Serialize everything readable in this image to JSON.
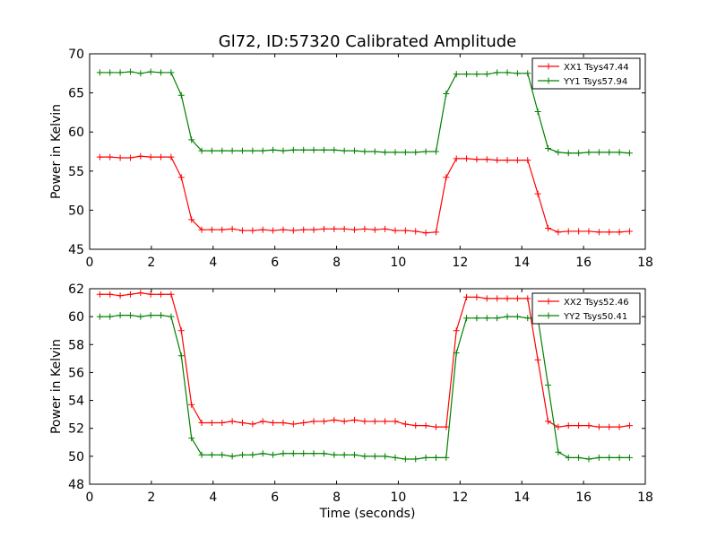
{
  "figure": {
    "title": "Gl72, ID:57320 Calibrated Amplitude"
  },
  "chart_data": [
    {
      "type": "line",
      "title": "Gl72, ID:57320 Calibrated Amplitude",
      "xlabel": "",
      "ylabel": "Power in Kelvin",
      "xlim": [
        0,
        18
      ],
      "ylim": [
        45,
        70
      ],
      "xticks": [
        0,
        2,
        4,
        6,
        8,
        10,
        12,
        14,
        16,
        18
      ],
      "yticks": [
        45,
        50,
        55,
        60,
        65,
        70
      ],
      "grid": false,
      "legend": "top-right",
      "x": [
        0.33,
        0.66,
        0.99,
        1.32,
        1.65,
        1.98,
        2.31,
        2.64,
        2.97,
        3.3,
        3.63,
        3.96,
        4.29,
        4.62,
        4.95,
        5.28,
        5.61,
        5.94,
        6.27,
        6.6,
        6.93,
        7.26,
        7.59,
        7.92,
        8.25,
        8.58,
        8.91,
        9.24,
        9.57,
        9.9,
        10.23,
        10.56,
        10.89,
        11.22,
        11.55,
        11.88,
        12.21,
        12.54,
        12.87,
        13.2,
        13.53,
        13.86,
        14.19,
        14.52,
        14.85,
        15.18,
        15.51,
        15.84,
        16.17,
        16.5,
        16.83,
        17.16,
        17.49
      ],
      "series": [
        {
          "name": "XX1 Tsys47.44",
          "color": "#ff0000",
          "values": [
            56.8,
            56.8,
            56.7,
            56.7,
            56.9,
            56.8,
            56.8,
            56.8,
            54.2,
            48.8,
            47.5,
            47.5,
            47.5,
            47.6,
            47.4,
            47.4,
            47.5,
            47.4,
            47.5,
            47.4,
            47.5,
            47.5,
            47.6,
            47.6,
            47.6,
            47.5,
            47.6,
            47.5,
            47.6,
            47.4,
            47.4,
            47.3,
            47.1,
            47.2,
            54.2,
            56.6,
            56.6,
            56.5,
            56.5,
            56.4,
            56.4,
            56.4,
            56.4,
            52.1,
            47.7,
            47.2,
            47.3,
            47.3,
            47.3,
            47.2,
            47.2,
            47.2,
            47.3
          ]
        },
        {
          "name": "YY1 Tsys57.94",
          "color": "#008000",
          "values": [
            67.6,
            67.6,
            67.6,
            67.7,
            67.5,
            67.7,
            67.6,
            67.6,
            64.7,
            59.0,
            57.6,
            57.6,
            57.6,
            57.6,
            57.6,
            57.6,
            57.6,
            57.7,
            57.6,
            57.7,
            57.7,
            57.7,
            57.7,
            57.7,
            57.6,
            57.6,
            57.5,
            57.5,
            57.4,
            57.4,
            57.4,
            57.4,
            57.5,
            57.5,
            64.9,
            67.4,
            67.4,
            67.4,
            67.4,
            67.6,
            67.6,
            67.5,
            67.5,
            62.6,
            57.9,
            57.4,
            57.3,
            57.3,
            57.4,
            57.4,
            57.4,
            57.4,
            57.3
          ]
        }
      ]
    },
    {
      "type": "line",
      "title": "",
      "xlabel": "Time (seconds)",
      "ylabel": "Power in Kelvin",
      "xlim": [
        0,
        18
      ],
      "ylim": [
        48,
        62
      ],
      "xticks": [
        0,
        2,
        4,
        6,
        8,
        10,
        12,
        14,
        16,
        18
      ],
      "yticks": [
        48,
        50,
        52,
        54,
        56,
        58,
        60,
        62
      ],
      "grid": false,
      "legend": "top-right",
      "x": [
        0.33,
        0.66,
        0.99,
        1.32,
        1.65,
        1.98,
        2.31,
        2.64,
        2.97,
        3.3,
        3.63,
        3.96,
        4.29,
        4.62,
        4.95,
        5.28,
        5.61,
        5.94,
        6.27,
        6.6,
        6.93,
        7.26,
        7.59,
        7.92,
        8.25,
        8.58,
        8.91,
        9.24,
        9.57,
        9.9,
        10.23,
        10.56,
        10.89,
        11.22,
        11.55,
        11.88,
        12.21,
        12.54,
        12.87,
        13.2,
        13.53,
        13.86,
        14.19,
        14.52,
        14.85,
        15.18,
        15.51,
        15.84,
        16.17,
        16.5,
        16.83,
        17.16,
        17.49
      ],
      "series": [
        {
          "name": "XX2 Tsys52.46",
          "color": "#ff0000",
          "values": [
            61.6,
            61.6,
            61.5,
            61.6,
            61.7,
            61.6,
            61.6,
            61.6,
            59.0,
            53.7,
            52.4,
            52.4,
            52.4,
            52.5,
            52.4,
            52.3,
            52.5,
            52.4,
            52.4,
            52.3,
            52.4,
            52.5,
            52.5,
            52.6,
            52.5,
            52.6,
            52.5,
            52.5,
            52.5,
            52.5,
            52.3,
            52.2,
            52.2,
            52.1,
            52.1,
            59.0,
            61.4,
            61.4,
            61.3,
            61.3,
            61.3,
            61.3,
            61.3,
            56.9,
            52.5,
            52.1,
            52.2,
            52.2,
            52.2,
            52.1,
            52.1,
            52.1,
            52.2
          ]
        },
        {
          "name": "YY2 Tsys50.41",
          "color": "#008000",
          "values": [
            60.0,
            60.0,
            60.1,
            60.1,
            60.0,
            60.1,
            60.1,
            60.0,
            57.2,
            51.3,
            50.1,
            50.1,
            50.1,
            50.0,
            50.1,
            50.1,
            50.2,
            50.1,
            50.2,
            50.2,
            50.2,
            50.2,
            50.2,
            50.1,
            50.1,
            50.1,
            50.0,
            50.0,
            50.0,
            49.9,
            49.8,
            49.8,
            49.9,
            49.9,
            49.9,
            57.4,
            59.9,
            59.9,
            59.9,
            59.9,
            60.0,
            60.0,
            59.9,
            59.9,
            55.1,
            50.3,
            49.9,
            49.9,
            49.8,
            49.9,
            49.9,
            49.9,
            49.9
          ]
        }
      ]
    }
  ]
}
